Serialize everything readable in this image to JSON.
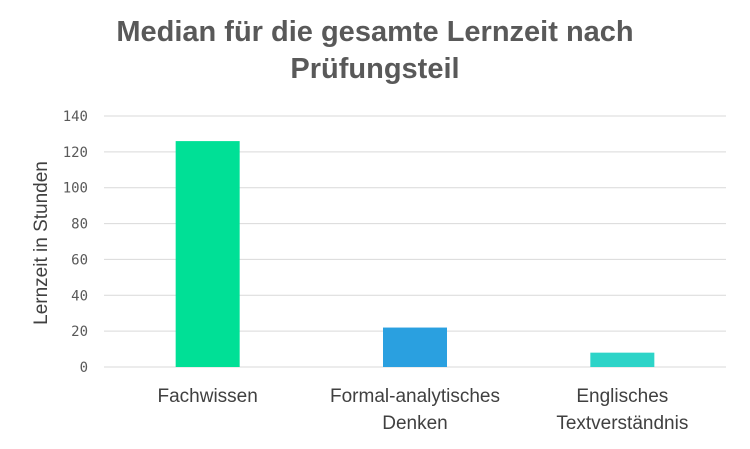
{
  "chart_data": {
    "type": "bar",
    "title_lines": [
      "Median für die gesamte Lernzeit nach",
      "Prüfungsteil"
    ],
    "ylabel": "Lernzeit in Stunden",
    "xlabel": "",
    "ylim": [
      0,
      140
    ],
    "yticks": [
      0,
      20,
      40,
      60,
      80,
      100,
      120,
      140
    ],
    "grid": true,
    "categories": [
      [
        "Fachwissen"
      ],
      [
        "Formal-analytisches",
        "Denken"
      ],
      [
        "Englisches",
        "Textverständnis"
      ]
    ],
    "values": [
      126,
      22,
      8
    ],
    "colors": [
      "#00e096",
      "#2aa0e0",
      "#2dd4c8"
    ]
  },
  "colors": {
    "grid": "#d9d9d9",
    "text": "#595959"
  }
}
